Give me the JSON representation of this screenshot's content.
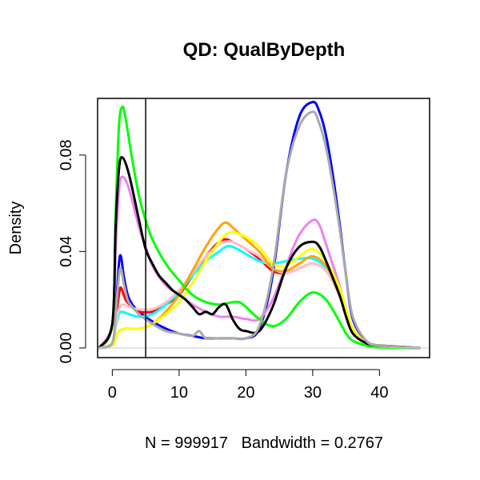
{
  "chart_data": {
    "type": "line",
    "title": "QD: QualByDepth",
    "xlabel": "N = 999917   Bandwidth = 0.2767",
    "ylabel": "Density",
    "xlim": [
      -2.2,
      47.5
    ],
    "ylim": [
      -0.004,
      0.1035
    ],
    "xticks": [
      0,
      10,
      20,
      30,
      40
    ],
    "yticks": [
      0.0,
      0.04,
      0.08
    ],
    "ytick_labels": [
      "0.00",
      "0.04",
      "0.08"
    ],
    "xtick_labels": [
      "0",
      "10",
      "20",
      "30",
      "40"
    ],
    "vline": 5,
    "hline": 0,
    "grid": false,
    "legend": "none",
    "series": [
      {
        "color": "#0000ff",
        "points": [
          [
            -2,
            0
          ],
          [
            0,
            0.002
          ],
          [
            0.5,
            0.015
          ],
          [
            1,
            0.035
          ],
          [
            1.3,
            0.038
          ],
          [
            1.7,
            0.03
          ],
          [
            2.3,
            0.022
          ],
          [
            3,
            0.018
          ],
          [
            4,
            0.015
          ],
          [
            6,
            0.011
          ],
          [
            8,
            0.008
          ],
          [
            10,
            0.006
          ],
          [
            12,
            0.005
          ],
          [
            14,
            0.004
          ],
          [
            16,
            0.004
          ],
          [
            18,
            0.004
          ],
          [
            20,
            0.004
          ],
          [
            22,
            0.008
          ],
          [
            24,
            0.03
          ],
          [
            26,
            0.072
          ],
          [
            28,
            0.096
          ],
          [
            30,
            0.102
          ],
          [
            31,
            0.098
          ],
          [
            32,
            0.088
          ],
          [
            33,
            0.072
          ],
          [
            34,
            0.052
          ],
          [
            35,
            0.03
          ],
          [
            36,
            0.012
          ],
          [
            38,
            0.003
          ],
          [
            40,
            0.001
          ],
          [
            46,
            0
          ]
        ]
      },
      {
        "color": "#ff0000",
        "points": [
          [
            -2,
            0
          ],
          [
            0,
            0.002
          ],
          [
            0.5,
            0.012
          ],
          [
            1,
            0.022
          ],
          [
            1.3,
            0.025
          ],
          [
            2,
            0.02
          ],
          [
            3,
            0.017
          ],
          [
            4,
            0.015
          ],
          [
            6,
            0.015
          ],
          [
            8,
            0.018
          ],
          [
            10,
            0.022
          ],
          [
            12,
            0.03
          ],
          [
            14,
            0.038
          ],
          [
            16,
            0.044
          ],
          [
            17,
            0.045
          ],
          [
            18,
            0.044
          ],
          [
            20,
            0.041
          ],
          [
            22,
            0.037
          ],
          [
            24,
            0.032
          ],
          [
            26,
            0.031
          ],
          [
            28,
            0.033
          ],
          [
            30,
            0.035
          ],
          [
            32,
            0.032
          ],
          [
            34,
            0.022
          ],
          [
            35,
            0.014
          ],
          [
            36,
            0.007
          ],
          [
            38,
            0.002
          ],
          [
            40,
            0.001
          ],
          [
            46,
            0
          ]
        ]
      },
      {
        "color": "#00ffff",
        "points": [
          [
            -2,
            0
          ],
          [
            0,
            0.002
          ],
          [
            0.5,
            0.009
          ],
          [
            1,
            0.014
          ],
          [
            1.5,
            0.015
          ],
          [
            2.5,
            0.014
          ],
          [
            4,
            0.013
          ],
          [
            6,
            0.014
          ],
          [
            8,
            0.018
          ],
          [
            10,
            0.023
          ],
          [
            12,
            0.03
          ],
          [
            14,
            0.036
          ],
          [
            16,
            0.04
          ],
          [
            17,
            0.042
          ],
          [
            18,
            0.042
          ],
          [
            20,
            0.039
          ],
          [
            22,
            0.036
          ],
          [
            24,
            0.035
          ],
          [
            26,
            0.036
          ],
          [
            28,
            0.037
          ],
          [
            30,
            0.037
          ],
          [
            32,
            0.033
          ],
          [
            34,
            0.022
          ],
          [
            35,
            0.014
          ],
          [
            36,
            0.007
          ],
          [
            38,
            0.002
          ],
          [
            40,
            0.001
          ],
          [
            46,
            0
          ]
        ]
      },
      {
        "color": "#ee82ee",
        "points": [
          [
            -2,
            0
          ],
          [
            0,
            0.01
          ],
          [
            0.5,
            0.04
          ],
          [
            1,
            0.065
          ],
          [
            1.5,
            0.071
          ],
          [
            2.5,
            0.066
          ],
          [
            4,
            0.05
          ],
          [
            5,
            0.042
          ],
          [
            6,
            0.034
          ],
          [
            8,
            0.026
          ],
          [
            10,
            0.022
          ],
          [
            12,
            0.018
          ],
          [
            14,
            0.015
          ],
          [
            16,
            0.013
          ],
          [
            18,
            0.013
          ],
          [
            20,
            0.012
          ],
          [
            22,
            0.012
          ],
          [
            24,
            0.02
          ],
          [
            26,
            0.034
          ],
          [
            28,
            0.047
          ],
          [
            30,
            0.053
          ],
          [
            31,
            0.051
          ],
          [
            32,
            0.043
          ],
          [
            34,
            0.026
          ],
          [
            35,
            0.016
          ],
          [
            36,
            0.008
          ],
          [
            38,
            0.002
          ],
          [
            40,
            0.001
          ],
          [
            46,
            0
          ]
        ]
      },
      {
        "color": "#ffc0cb",
        "points": [
          [
            -2,
            0
          ],
          [
            0,
            0.002
          ],
          [
            0.5,
            0.01
          ],
          [
            1,
            0.016
          ],
          [
            1.5,
            0.018
          ],
          [
            2.5,
            0.017
          ],
          [
            4,
            0.016
          ],
          [
            6,
            0.016
          ],
          [
            8,
            0.019
          ],
          [
            10,
            0.024
          ],
          [
            12,
            0.031
          ],
          [
            14,
            0.038
          ],
          [
            16,
            0.043
          ],
          [
            17,
            0.044
          ],
          [
            18,
            0.044
          ],
          [
            20,
            0.041
          ],
          [
            22,
            0.038
          ],
          [
            24,
            0.033
          ],
          [
            26,
            0.031
          ],
          [
            28,
            0.033
          ],
          [
            30,
            0.035
          ],
          [
            32,
            0.032
          ],
          [
            34,
            0.022
          ],
          [
            35,
            0.014
          ],
          [
            36,
            0.007
          ],
          [
            38,
            0.002
          ],
          [
            40,
            0.001
          ],
          [
            46,
            0
          ]
        ]
      },
      {
        "color": "#ffa500",
        "points": [
          [
            -2,
            0
          ],
          [
            0,
            0.001
          ],
          [
            0.5,
            0.004
          ],
          [
            1,
            0.007
          ],
          [
            2,
            0.008
          ],
          [
            4,
            0.008
          ],
          [
            6,
            0.01
          ],
          [
            8,
            0.015
          ],
          [
            10,
            0.022
          ],
          [
            12,
            0.032
          ],
          [
            14,
            0.042
          ],
          [
            16,
            0.05
          ],
          [
            17,
            0.052
          ],
          [
            18,
            0.05
          ],
          [
            20,
            0.045
          ],
          [
            22,
            0.04
          ],
          [
            24,
            0.033
          ],
          [
            26,
            0.032
          ],
          [
            28,
            0.035
          ],
          [
            30,
            0.038
          ],
          [
            32,
            0.034
          ],
          [
            34,
            0.024
          ],
          [
            35,
            0.015
          ],
          [
            36,
            0.007
          ],
          [
            38,
            0.002
          ],
          [
            40,
            0.001
          ],
          [
            46,
            0
          ]
        ]
      },
      {
        "color": "#ffff00",
        "points": [
          [
            -2,
            0
          ],
          [
            0,
            0.001
          ],
          [
            0.5,
            0.004
          ],
          [
            1,
            0.007
          ],
          [
            2,
            0.008
          ],
          [
            4,
            0.008
          ],
          [
            6,
            0.01
          ],
          [
            8,
            0.014
          ],
          [
            10,
            0.019
          ],
          [
            12,
            0.027
          ],
          [
            14,
            0.036
          ],
          [
            16,
            0.044
          ],
          [
            17,
            0.047
          ],
          [
            18,
            0.048
          ],
          [
            20,
            0.046
          ],
          [
            22,
            0.042
          ],
          [
            24,
            0.035
          ],
          [
            26,
            0.034
          ],
          [
            28,
            0.038
          ],
          [
            30,
            0.041
          ],
          [
            32,
            0.036
          ],
          [
            34,
            0.025
          ],
          [
            35,
            0.016
          ],
          [
            36,
            0.008
          ],
          [
            38,
            0.002
          ],
          [
            40,
            0.001
          ],
          [
            46,
            0
          ]
        ]
      },
      {
        "color": "#00ff00",
        "points": [
          [
            -2,
            0
          ],
          [
            0,
            0.01
          ],
          [
            0.5,
            0.055
          ],
          [
            1,
            0.092
          ],
          [
            1.5,
            0.1
          ],
          [
            2,
            0.095
          ],
          [
            3,
            0.078
          ],
          [
            4,
            0.063
          ],
          [
            5,
            0.053
          ],
          [
            6,
            0.045
          ],
          [
            8,
            0.035
          ],
          [
            10,
            0.028
          ],
          [
            12,
            0.022
          ],
          [
            14,
            0.019
          ],
          [
            16,
            0.018
          ],
          [
            18,
            0.019
          ],
          [
            19,
            0.019
          ],
          [
            20,
            0.017
          ],
          [
            22,
            0.012
          ],
          [
            24,
            0.009
          ],
          [
            26,
            0.012
          ],
          [
            28,
            0.019
          ],
          [
            30,
            0.023
          ],
          [
            32,
            0.02
          ],
          [
            34,
            0.011
          ],
          [
            35,
            0.006
          ],
          [
            36,
            0.003
          ],
          [
            38,
            0.001
          ],
          [
            40,
            0
          ],
          [
            46,
            0
          ]
        ]
      },
      {
        "color": "#000000",
        "points": [
          [
            -2,
            0
          ],
          [
            0,
            0.01
          ],
          [
            0.5,
            0.05
          ],
          [
            1,
            0.074
          ],
          [
            1.5,
            0.079
          ],
          [
            2.5,
            0.072
          ],
          [
            4,
            0.053
          ],
          [
            5,
            0.041
          ],
          [
            6,
            0.035
          ],
          [
            7,
            0.03
          ],
          [
            8,
            0.027
          ],
          [
            9,
            0.024
          ],
          [
            10,
            0.022
          ],
          [
            11,
            0.02
          ],
          [
            12,
            0.017
          ],
          [
            13,
            0.014
          ],
          [
            14,
            0.015
          ],
          [
            15,
            0.014
          ],
          [
            16,
            0.017
          ],
          [
            17,
            0.018
          ],
          [
            18,
            0.012
          ],
          [
            19,
            0.008
          ],
          [
            20,
            0.007
          ],
          [
            22,
            0.007
          ],
          [
            24,
            0.017
          ],
          [
            26,
            0.033
          ],
          [
            28,
            0.042
          ],
          [
            30,
            0.044
          ],
          [
            31,
            0.042
          ],
          [
            32,
            0.036
          ],
          [
            34,
            0.022
          ],
          [
            35,
            0.013
          ],
          [
            36,
            0.006
          ],
          [
            38,
            0.002
          ],
          [
            40,
            0.001
          ],
          [
            46,
            0
          ]
        ]
      },
      {
        "color": "#aaaaaa",
        "points": [
          [
            -2,
            0
          ],
          [
            0,
            0.002
          ],
          [
            0.5,
            0.014
          ],
          [
            1,
            0.03
          ],
          [
            1.3,
            0.033
          ],
          [
            1.7,
            0.027
          ],
          [
            2.3,
            0.02
          ],
          [
            3,
            0.017
          ],
          [
            4,
            0.014
          ],
          [
            6,
            0.01
          ],
          [
            8,
            0.007
          ],
          [
            10,
            0.006
          ],
          [
            12,
            0.005
          ],
          [
            13,
            0.007
          ],
          [
            14,
            0.004
          ],
          [
            16,
            0.004
          ],
          [
            18,
            0.004
          ],
          [
            20,
            0.004
          ],
          [
            22,
            0.009
          ],
          [
            24,
            0.032
          ],
          [
            26,
            0.072
          ],
          [
            28,
            0.092
          ],
          [
            30,
            0.098
          ],
          [
            31,
            0.093
          ],
          [
            32,
            0.083
          ],
          [
            33,
            0.068
          ],
          [
            34,
            0.05
          ],
          [
            35,
            0.03
          ],
          [
            36,
            0.013
          ],
          [
            38,
            0.003
          ],
          [
            40,
            0.001
          ],
          [
            46,
            0
          ]
        ]
      }
    ]
  }
}
